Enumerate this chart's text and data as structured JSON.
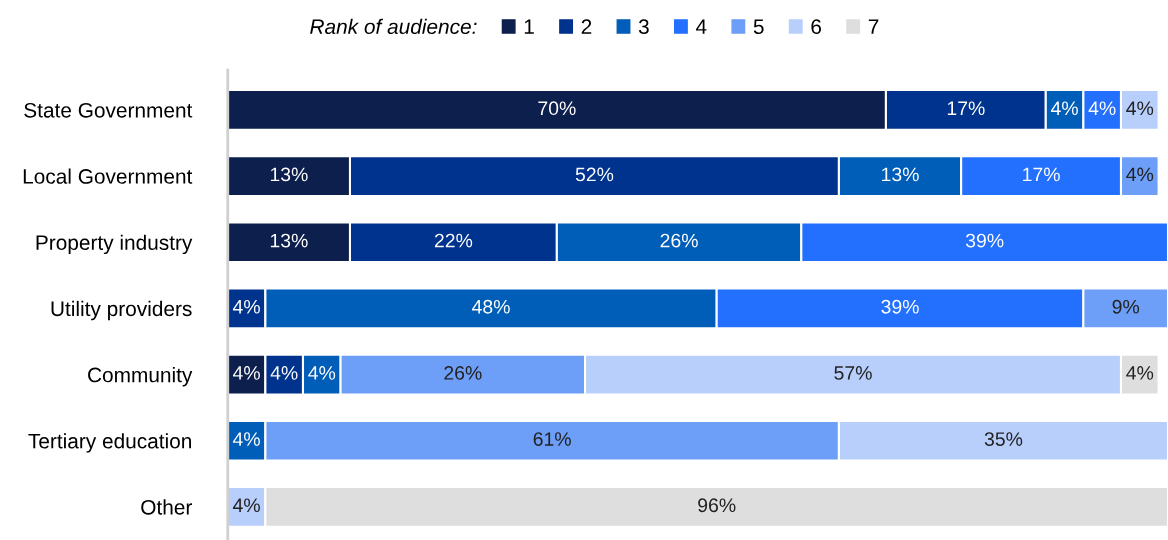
{
  "chart_data": {
    "type": "bar",
    "orientation": "horizontal",
    "stacked": true,
    "legend_title": "Rank of audience:",
    "legend": "top",
    "tick_labels": "y",
    "categories": [
      "State Government",
      "Local Government",
      "Property industry",
      "Utility providers",
      "Community",
      "Tertiary education",
      "Other"
    ],
    "series": [
      {
        "name": "1",
        "color": "#0c1f4d",
        "values": [
          70,
          13,
          13,
          null,
          4,
          null,
          null
        ],
        "value_labels": [
          "70%",
          "13%",
          "13%",
          null,
          "4%",
          null,
          null
        ]
      },
      {
        "name": "2",
        "color": "#00338d",
        "values": [
          17,
          52,
          22,
          4,
          4,
          null,
          null
        ],
        "value_labels": [
          "17%",
          "52%",
          "22%",
          "4%",
          "4%",
          null,
          null
        ]
      },
      {
        "name": "3",
        "color": "#005eb8",
        "values": [
          4,
          13,
          26,
          48,
          4,
          4,
          null
        ],
        "value_labels": [
          "4%",
          "13%",
          "26%",
          "48%",
          "4%",
          "4%",
          null
        ]
      },
      {
        "name": "4",
        "color": "#2370ff",
        "values": [
          4,
          17,
          39,
          39,
          null,
          null,
          null
        ],
        "value_labels": [
          "4%",
          "17%",
          "39%",
          "39%",
          null,
          null,
          null
        ]
      },
      {
        "name": "5",
        "color": "#6d9ef8",
        "values": [
          null,
          4,
          null,
          9,
          26,
          61,
          null
        ],
        "value_labels": [
          null,
          "4%",
          null,
          "9%",
          "26%",
          "61%",
          null
        ]
      },
      {
        "name": "6",
        "color": "#b8cffc",
        "values": [
          4,
          null,
          null,
          null,
          57,
          35,
          4
        ],
        "value_labels": [
          "4%",
          null,
          null,
          null,
          "57%",
          "35%",
          "4%"
        ]
      },
      {
        "name": "7",
        "color": "#dedede",
        "values": [
          null,
          null,
          null,
          null,
          4,
          null,
          96
        ],
        "value_labels": [
          null,
          null,
          null,
          null,
          "4%",
          null,
          "96%"
        ]
      }
    ]
  }
}
